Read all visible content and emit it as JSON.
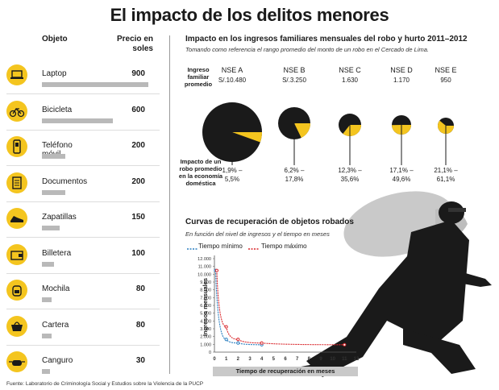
{
  "title": "El impacto de los delitos menores",
  "table": {
    "col_objeto": "Objeto",
    "col_precio": "Precio en soles",
    "items": [
      {
        "name": "Laptop",
        "price": "900",
        "value": 900,
        "icon": "laptop-icon"
      },
      {
        "name": "Bicicleta",
        "price": "600",
        "value": 600,
        "icon": "bicycle-icon"
      },
      {
        "name": "Teléfono móvil",
        "price": "200",
        "value": 200,
        "icon": "phone-icon"
      },
      {
        "name": "Documentos",
        "price": "200",
        "value": 200,
        "icon": "documents-icon"
      },
      {
        "name": "Zapatillas",
        "price": "150",
        "value": 150,
        "icon": "sneaker-icon"
      },
      {
        "name": "Billetera",
        "price": "100",
        "value": 100,
        "icon": "wallet-icon"
      },
      {
        "name": "Mochila",
        "price": "80",
        "value": 80,
        "icon": "backpack-icon"
      },
      {
        "name": "Cartera",
        "price": "80",
        "value": 80,
        "icon": "handbag-icon"
      },
      {
        "name": "Canguro",
        "price": "30",
        "value": 30,
        "icon": "fanny-pack-icon"
      }
    ]
  },
  "impact": {
    "title": "Impacto en los ingresos familiares mensuales del robo y hurto 2011–2012",
    "note": "Tomando como referencia el rango promedio del monto de un robo en el Cercado de Lima.",
    "row_ingreso": "Ingreso familiar promedio",
    "row_impacto": "Impacto de un robo promedio en la economía doméstica",
    "groups": [
      {
        "name": "NSE A",
        "income": "S/.10.480",
        "range": [
          "1,9% –",
          "5,5%"
        ]
      },
      {
        "name": "NSE B",
        "income": "S/.3.250",
        "range": [
          "6,2% –",
          "17,8%"
        ]
      },
      {
        "name": "NSE C",
        "income": "1.630",
        "range": [
          "12,3% –",
          "35,6%"
        ]
      },
      {
        "name": "NSE D",
        "income": "1.170",
        "range": [
          "17,1% –",
          "49,6%"
        ]
      },
      {
        "name": "NSE E",
        "income": "950",
        "range": [
          "21,1% –",
          "61,1%"
        ]
      }
    ]
  },
  "recovery": {
    "title": "Curvas de recuperación de objetos robados",
    "subtitle": "En función del nivel de ingresos y el tiempo en meses",
    "legend_min": "Tiempo mínimo",
    "legend_max": "Tiempo máximo",
    "ylabel": "Ingresos mensuales",
    "xlabel": "Tiempo de recuperación en meses",
    "yticks": [
      "0",
      "1.000",
      "2.000",
      "3.000",
      "4.000",
      "5.000",
      "6.000",
      "7.000",
      "8.000",
      "9.000",
      "10.000",
      "11.000",
      "12.000"
    ],
    "xticks": [
      "0",
      "1",
      "2",
      "3",
      "4",
      "5",
      "6",
      "7",
      "8",
      "9",
      "10",
      "11",
      "12"
    ]
  },
  "source": "Fuente: Laboratorio de Criminología Social y Estudios sobre la Violencia de la PUCP",
  "colors": {
    "accent": "#f4c51f",
    "bar": "#b9b9b9",
    "min_series": "#2a7fc1",
    "max_series": "#d9252a",
    "pie_dark": "#1a1a1a"
  },
  "chart_data": [
    {
      "type": "bar",
      "title": "",
      "categories": [
        "Laptop",
        "Bicicleta",
        "Teléfono móvil",
        "Documentos",
        "Zapatillas",
        "Billetera",
        "Mochila",
        "Cartera",
        "Canguro"
      ],
      "values": [
        900,
        600,
        200,
        200,
        150,
        100,
        80,
        80,
        30
      ],
      "ylabel": "Precio en soles",
      "xlim": [
        0,
        900
      ]
    },
    {
      "type": "pie",
      "title": "Impacto en los ingresos familiares mensuales del robo y hurto 2011–2012",
      "categories": [
        "NSE A",
        "NSE B",
        "NSE C",
        "NSE D",
        "NSE E"
      ],
      "values": [
        5.5,
        17.8,
        35.6,
        49.6,
        61.1
      ],
      "min_values": [
        1.9,
        6.2,
        12.3,
        17.1,
        21.1
      ],
      "income": [
        10480,
        3250,
        1630,
        1170,
        950
      ]
    },
    {
      "type": "line",
      "title": "Curvas de recuperación de objetos robados",
      "xlabel": "Tiempo de recuperación en meses",
      "ylabel": "Ingresos mensuales",
      "xlim": [
        0,
        12
      ],
      "ylim": [
        0,
        12000
      ],
      "series": [
        {
          "name": "Tiempo mínimo",
          "points": [
            [
              0.1,
              10480
            ],
            [
              1.0,
              1630
            ],
            [
              2.0,
              1170
            ],
            [
              4.0,
              950
            ]
          ]
        },
        {
          "name": "Tiempo máximo",
          "points": [
            [
              0.2,
              10480
            ],
            [
              1.0,
              3250
            ],
            [
              2.0,
              1630
            ],
            [
              4.0,
              1170
            ],
            [
              11.0,
              950
            ]
          ]
        }
      ]
    }
  ]
}
